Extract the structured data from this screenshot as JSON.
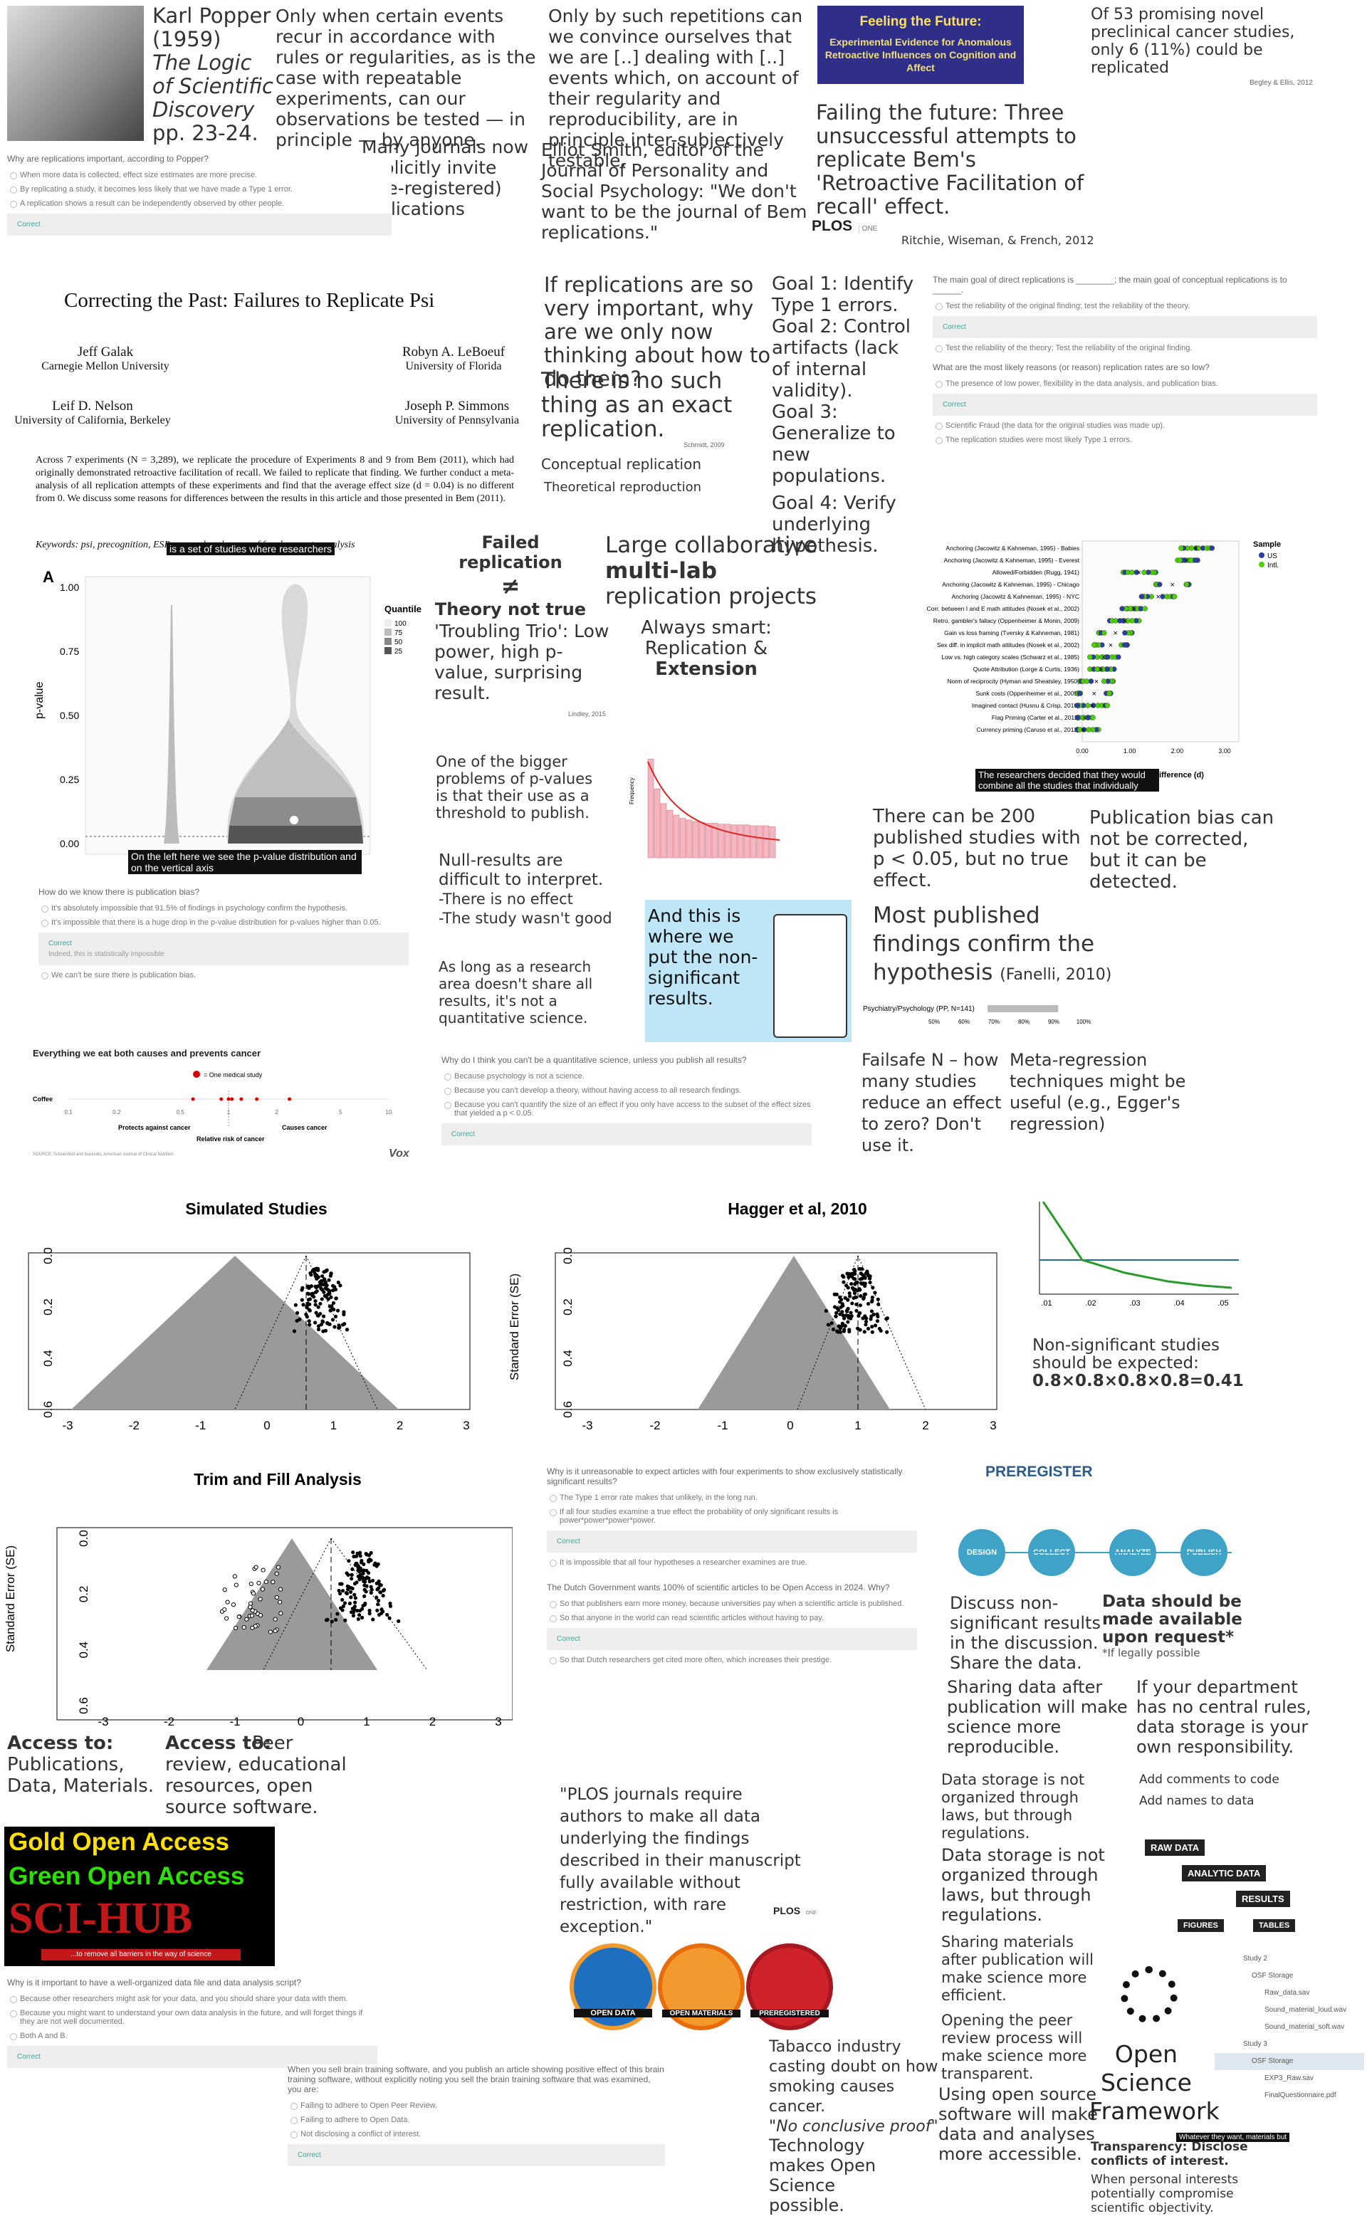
{
  "popper": {
    "name": "Karl Popper",
    "year": "(1959)",
    "book": "The Logic of Scientific Discovery",
    "pages": "pp. 23-24.",
    "quote": "Only when certain events recur in accordance with rules or regularities, as is the case with repeatable experiments, can our observations be tested — in principle — by anyone."
  },
  "quiz1": {
    "question": "Why are replications important, according to Popper?",
    "options": [
      "When more data is collected, effect size estimates are more precise.",
      "By replicating a study, it becomes less likely that we have made a Type 1 error.",
      "A replication shows a result can be independently observed by other people."
    ],
    "correct": "Correct"
  },
  "journals_text": "Many journals now explicitly invite (pre-registered) replications",
  "repetitions_quote": "Only by such repetitions can we convince ourselves that we are [..] dealing with [..] events which, on account of their regularity and reproducibility, are in principle inter-subjectively testable.",
  "smith_text": "Elliot Smith, editor of the Journal of Personality and Social Psychology: \"We don't want to be the journal of Bem replications.\"",
  "bem_cover": {
    "title": "Feeling the Future:",
    "subtitle": "Experimental Evidence for Anomalous Retroactive Influences on Cognition and Affect"
  },
  "failing_future": "Failing the future: Three unsuccessful attempts to replicate Bem's 'Retroactive Facilitation of recall' effect.",
  "plos_logo": "PLOS",
  "plos_one": "ONE",
  "ritchie_cite": "Ritchie, Wiseman, & French, 2012",
  "begley": {
    "text": "Of 53 promising novel preclinical cancer studies, only 6 (11%) could be replicated",
    "cite": "Begley & Ellis, 2012"
  },
  "galak": {
    "title": "Correcting the Past: Failures to Replicate Psi",
    "authors": [
      {
        "name": "Jeff Galak",
        "aff": "Carnegie Mellon University"
      },
      {
        "name": "Robyn A. LeBoeuf",
        "aff": "University of Florida"
      },
      {
        "name": "Leif D. Nelson",
        "aff": "University of California, Berkeley"
      },
      {
        "name": "Joseph P. Simmons",
        "aff": "University of Pennsylvania"
      }
    ],
    "abstract": "Across 7 experiments (N = 3,289), we replicate the procedure of Experiments 8 and 9 from Bem (2011), which had originally demonstrated retroactive facilitation of recall. We failed to replicate that finding. We further conduct a meta-analysis of all replication attempts of these experiments and find that the average effect size (d = 0.04) is no different from 0. We discuss some reasons for differences between the results in this article and those presented in Bem (2011).",
    "keywords": "Keywords: psi, precognition, ESP, researcher degrees of freedom, meta-analysis",
    "caption": "is a set of studies where researchers"
  },
  "replication_q": "If replications are so very important, why are we only now thinking about how to do them?",
  "no_exact": "There is no such thing as an exact replication.",
  "schmidt": "Schmidt, 2009",
  "conceptual": "Conceptual replication",
  "theoretical": "Theoretical reproduction",
  "goals": {
    "g1": "Goal 1: Identify Type 1 errors.",
    "g2": "Goal 2: Control artifacts (lack of internal validity).",
    "g3": "Goal 3: Generalize to new populations.",
    "g4": "Goal 4: Verify underlying hypothesis."
  },
  "quiz2": {
    "q1": "The main goal of direct replications is ________; the main goal of conceptual replications is to ______.",
    "q1_opt1": "Test the reliability of the original finding; test the reliability of the theory.",
    "q1_correct": "Correct",
    "q1_opt2": "Test the reliability of the theory; Test the reliability of the original finding.",
    "q2": "What are the most likely reasons (or reason) replication rates are so low?",
    "q2_opt1": "The presence of low power, flexibility in the data analysis, and publication bias.",
    "q2_correct": "Correct",
    "q2_opt2": "Scientific Fraud (the data for the original studies was made up).",
    "q2_opt3": "The replication studies were most likely Type 1 errors."
  },
  "violin": {
    "panel": "A",
    "ylabel": "p-value",
    "yticks": [
      "1.00",
      "0.75",
      "0.50",
      "0.25",
      "0.00"
    ],
    "legend_title": "Quantile",
    "legend": [
      "100",
      "75",
      "50",
      "25"
    ],
    "caption": "On the left here we see the p-value distribution and on the vertical axis"
  },
  "failed_rep": {
    "line1": "Failed replication",
    "neq": "≠",
    "line2": "Theory not true"
  },
  "trio": {
    "text": "'Troubling Trio': Low power, high p-value, surprising result.",
    "cite": "Lindley, 2015"
  },
  "multilab": {
    "l1": "Large collaborative",
    "l2": "multi-lab",
    "l3": "replication projects"
  },
  "always_smart": {
    "l1": "Always smart:",
    "l2": "Replication &",
    "l3": "Extension"
  },
  "manylabs": {
    "rows": [
      "Anchoring (Jacowitz & Kahneman, 1995) - Babies",
      "Anchoring (Jacowitz & Kahneman, 1995) - Everest",
      "Allowed/Forbidden (Rugg, 1941)",
      "Anchoring (Jacowitz & Kahneman, 1995) - Chicago",
      "Anchoring (Jacowitz & Kahneman, 1995) - NYC",
      "Corr. between I and E math attitudes (Nosek et al., 2002)",
      "Retro. gambler's fallacy (Oppenheimer & Monin, 2009)",
      "Gain vs loss framing (Tversky & Kahneman, 1981)",
      "Sex diff. in implicit math attitudes (Nosek et al., 2002)",
      "Low vs. high category scales (Schwarz et al., 1985)",
      "Quote Attribution (Lorge & Curtis, 1936)",
      "Norm of reciprocity (Hyman and Sheatsley, 1950)",
      "Sunk costs (Oppenheimer et al., 2009)",
      "Imagined contact (Husnu & Crisp, 2010)",
      "Flag Priming (Carter et al., 2011)",
      "Currency priming (Caruso et al., 2012)"
    ],
    "legend_title": "Sample",
    "legend": [
      "US",
      "Intl."
    ],
    "xticks": [
      "0.00",
      "1.00",
      "2.00",
      "3.00"
    ],
    "xlabel": "Difference (d)",
    "caption": "The researchers decided that they would combine all the studies that individually"
  },
  "bigger_problems": "One of the bigger problems of p-values is that their use as a threshold to publish.",
  "null_results": {
    "l1": "Null-results are difficult to interpret.",
    "l2": "-There is no effect",
    "l3": "-The study wasn't good"
  },
  "quant_science": "As long as a research area doesn't share all results, it's not a quantitative science.",
  "nonsig_box": "And this is where we put the non-significant results.",
  "histogram": {
    "ylabel": "Frequency",
    "values": [
      120,
      84,
      66,
      58,
      52,
      48,
      46,
      44,
      43,
      42,
      42,
      41,
      41,
      40,
      40,
      40,
      39,
      39,
      39,
      38
    ],
    "ymax": 130
  },
  "publication_bias": {
    "corrected": "Publication bias can not be corrected, but it can be detected.",
    "two_hundred": "There can be 200 published studies with p < 0.05, but no true effect.",
    "most_published": "Most published findings confirm the hypothesis",
    "fanelli": "(Fanelli, 2010)",
    "bar_label": "Psychiatry/Psychology (PP, N=141)",
    "bar_value": 91.5,
    "bar_ticks": [
      "50%",
      "60%",
      "70%",
      "80%",
      "90%",
      "100%"
    ]
  },
  "failsafe": "Failsafe N – how many studies reduce an effect to zero? Don't use it.",
  "metareg": "Meta-regression techniques might be useful (e.g., Egger's regression)",
  "quiz3": {
    "q": "How do we know there is publication bias?",
    "opt1": "It's absolutely impossible that 91.5% of findings in psychology confirm the hypothesis.",
    "opt2": "It's impossible that there is a huge drop in the p-value distribution for p-values higher than 0.05.",
    "correct": "Correct",
    "correct_note": "Indeed, this is statistically impossible",
    "opt3": "We can't be sure there is publication bias."
  },
  "cancer": {
    "title": "Everything we eat both causes and prevents cancer",
    "legend": "= One medical study",
    "row": "Coffee",
    "left": "Protects against cancer",
    "right": "Causes cancer",
    "xlabel": "Relative risk of cancer",
    "source": "SOURCE: Schoenfeld and Ioannidis, American Journal of Clinical Nutrition",
    "logo": "Vox",
    "ticks": [
      "0.1",
      "0.2",
      "0.5",
      "1",
      "2",
      "5",
      "10"
    ],
    "points": [
      0.6,
      0.9,
      1.0,
      1.05,
      1.2,
      1.5,
      2.4
    ]
  },
  "quiz4": {
    "q": "Why do I think you can't be a quantitative science, unless you publish all results?",
    "opt1": "Because psychology is not a science.",
    "opt2": "Because you can't develop a theory, without having access to all research findings.",
    "opt3": "Because you can't quantify the size of an effect if you only have access to the subset of the effect sizes that yielded a p < 0.05.",
    "correct": "Correct"
  },
  "funnel1": {
    "title": "Simulated Studies",
    "xticks": [
      "-3",
      "-2",
      "-1",
      "0",
      "1",
      "2",
      "3"
    ],
    "yticks": [
      "0.0",
      "0.2",
      "0.4",
      "0.6"
    ]
  },
  "funnel2": {
    "title": "Hagger et al, 2010",
    "ylabel": "Standard Error (SE)",
    "xticks": [
      "-3",
      "-2",
      "-1",
      "0",
      "1",
      "2",
      "3"
    ],
    "yticks": [
      "0.0",
      "0.2",
      "0.4",
      "0.6"
    ]
  },
  "funnel3": {
    "title": "Trim and Fill Analysis",
    "ylabel": "Standard Error (SE)",
    "xticks": [
      "-3",
      "-2",
      "-1",
      "0",
      "1",
      "2",
      "3"
    ],
    "yticks": [
      "0.0",
      "0.2",
      "0.4",
      "0.6"
    ]
  },
  "pcurve": {
    "xticks": [
      ".01",
      ".02",
      ".03",
      ".04",
      ".05"
    ],
    "text": "Non-significant studies should be expected:",
    "formula": "0.8×0.8×0.8×0.8=0.41"
  },
  "quiz5": {
    "q": "Why is it unreasonable to expect articles with four experiments to show exclusively statistically significant results?",
    "opt1": "The Type 1 error rate makes that unlikely, in the long run.",
    "opt2": "If all four studies examine a true effect the probability of only significant results is power*power*power*power.",
    "correct": "Correct",
    "opt3": "It is impossible that all four hypotheses a researcher examines are true.",
    "q2": "The Dutch Government wants 100% of scientific articles to be Open Access in 2024. Why?",
    "opt4": "So that publishers earn more money, because universities pay when a scientific article is published.",
    "opt5": "So that anyone in the world can read scientific articles without having to pay.",
    "correct2": "Correct",
    "opt6": "So that Dutch researchers get cited more often, which increases their prestige."
  },
  "access": {
    "to1": "Access to:",
    "items1": "Publications, Data, Materials.",
    "to2": "Access to:",
    "items2": "Peer review, educational resources, open source software."
  },
  "oa_banner": {
    "gold": "Gold Open Access",
    "green": "Green Open Access",
    "scihub": "SCI-HUB",
    "tagline": "...to remove all barriers in the way of science"
  },
  "plos_quote": "\"PLOS journals require authors to make all data underlying the findings described in their manuscript fully available without restriction, with rare exception.\"",
  "badges": [
    "OPEN DATA",
    "OPEN MATERIALS",
    "PREREGISTERED"
  ],
  "prereg": {
    "title": "PREREGISTER",
    "steps": [
      "DESIGN",
      "COLLECT",
      "ANALYZE",
      "PUBLISH"
    ]
  },
  "discuss_nonsig": "Discuss non-significant results in the discussion. Share the data.",
  "data_available": "Data should be made available upon request*",
  "legal": "*If legally possible",
  "sharing_data": "Sharing data after publication will make science more reproducible.",
  "department": "If your department has no central rules, data storage is your own responsibility.",
  "add_comments": "Add comments to code",
  "add_names": "Add names to data",
  "storage1": "Data storage is not organized through laws, but through regulations.",
  "storage2": "Data storage is not organized through laws, but through regulations.",
  "sharing_materials": "Sharing materials after publication will make science more efficient.",
  "peer_review": "Opening the peer review process will make science more transparent.",
  "open_source": "Using open source software will make data and analyses more accessible.",
  "tobacco": {
    "text": "Tabacco industry casting doubt on how smoking causes cancer.",
    "quote": "\"No conclusive proof\""
  },
  "technology": "Technology makes Open Science possible.",
  "data_flow": [
    "RAW DATA",
    "ANALYTIC DATA",
    "RESULTS",
    "FIGURES",
    "TABLES"
  ],
  "osf": {
    "name1": "Open",
    "name2": "Science",
    "name3": "Framework",
    "caption": "Whatever they want, materials but"
  },
  "osf_tree": [
    "Study 2",
    "OSF Storage",
    "Raw_data.sav",
    "Sound_material_loud.wav",
    "Sound_material_soft.wav",
    "Study 3",
    "OSF Storage",
    "EXP3_Raw.sav",
    "FinalQuestionnaire.pdf"
  ],
  "transparency": {
    "title": "Transparency: Disclose conflicts of interest.",
    "text": "When personal interests potentially compromise scientific objectivity."
  },
  "quiz6": {
    "q": "Why is it important to have a well-organized data file and data analysis script?",
    "opt1": "Because other researchers might ask for your data, and you should share your data with them.",
    "opt2": "Because you might want to understand your own data analysis in the future, and will forget things if they are not well documented.",
    "opt3": "Both A and B.",
    "correct": "Correct"
  },
  "quiz7": {
    "q": "When you sell brain training software, and you publish an article showing positive effect of this brain training software, without explicitly noting you sell the brain training software that was examined, you are:",
    "opt1": "Failing to adhere to Open Peer Review.",
    "opt2": "Failing to adhere to Open Data.",
    "opt3": "Not disclosing a conflict of interest.",
    "correct": "Correct"
  }
}
